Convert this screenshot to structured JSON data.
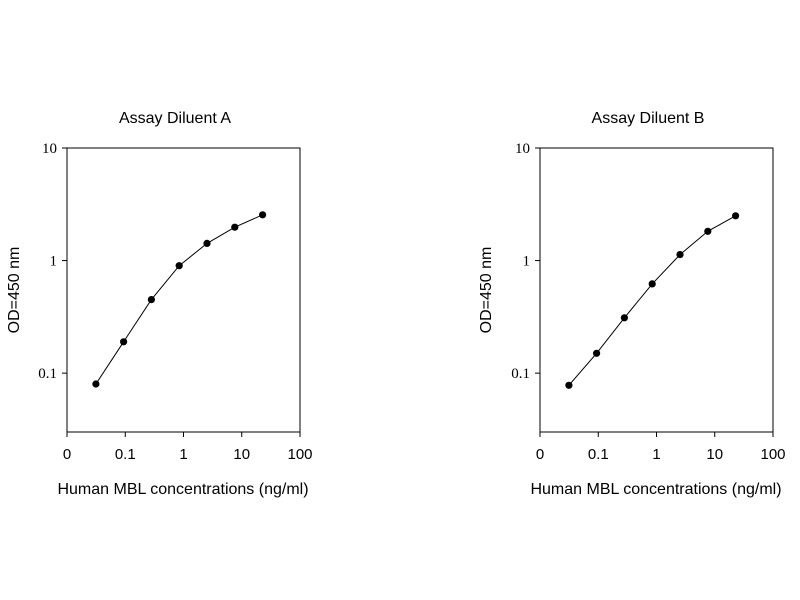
{
  "chart_data": [
    {
      "type": "line",
      "title": "Assay Diluent A",
      "xlabel": "Human MBL concentrations (ng/ml)",
      "ylabel": "OD=450 nm",
      "xscale": "log",
      "yscale": "log",
      "x_ticks": [
        "0",
        "0.1",
        "1",
        "10",
        "100"
      ],
      "y_ticks": [
        "10",
        "1",
        "0.1"
      ],
      "ylim": [
        0.03,
        10
      ],
      "grid": false,
      "series": [
        {
          "x": [
            0.0313,
            0.0938,
            0.281,
            0.844,
            2.53,
            7.59,
            22.8
          ],
          "y": [
            0.08,
            0.19,
            0.45,
            0.9,
            1.42,
            1.98,
            2.55
          ]
        }
      ]
    },
    {
      "type": "line",
      "title": "Assay Diluent B",
      "xlabel": "Human MBL concentrations (ng/ml)",
      "ylabel": "OD=450 nm",
      "xscale": "log",
      "yscale": "log",
      "x_ticks": [
        "0",
        "0.1",
        "1",
        "10",
        "100"
      ],
      "y_ticks": [
        "10",
        "1",
        "0.1"
      ],
      "ylim": [
        0.03,
        10
      ],
      "grid": false,
      "series": [
        {
          "x": [
            0.0313,
            0.0938,
            0.281,
            0.844,
            2.53,
            7.59,
            22.8
          ],
          "y": [
            0.078,
            0.15,
            0.31,
            0.62,
            1.13,
            1.82,
            2.5
          ]
        }
      ]
    }
  ]
}
